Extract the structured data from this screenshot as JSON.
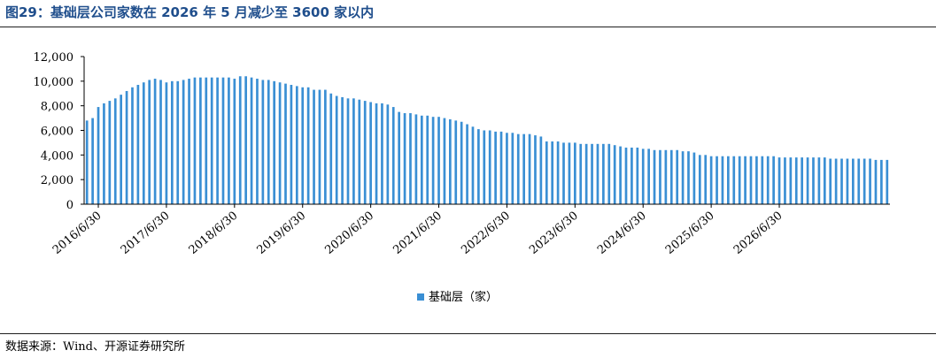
{
  "header": {
    "title": "图29：基础层公司家数在 2026 年 5 月减少至 3600 家以内"
  },
  "footer": {
    "source": "数据来源：Wind、开源证券研究所"
  },
  "colors": {
    "bar": "#3a8fd4",
    "title": "#1f4e8c",
    "axis": "#000000"
  },
  "chart_data": {
    "type": "bar",
    "title": "",
    "xlabel": "",
    "ylabel": "",
    "ylim": [
      0,
      12000
    ],
    "yticks": [
      0,
      2000,
      4000,
      6000,
      8000,
      10000,
      12000
    ],
    "ytick_labels": [
      "0",
      "2,000",
      "4,000",
      "6,000",
      "8,000",
      "10,000",
      "12,000"
    ],
    "x_tick_labels": [
      "2016/6/30",
      "2017/6/30",
      "2018/6/30",
      "2019/6/30",
      "2020/6/30",
      "2021/6/30",
      "2022/6/30",
      "2023/6/30",
      "2024/6/30",
      "2025/6/30",
      "2026/6/30"
    ],
    "grid": false,
    "legend_position": "bottom-center",
    "series": [
      {
        "name": "基础层（家）",
        "values": [
          6800,
          7000,
          7900,
          8200,
          8400,
          8600,
          8900,
          9200,
          9500,
          9700,
          9900,
          10100,
          10200,
          10100,
          9900,
          10000,
          10000,
          10100,
          10200,
          10300,
          10300,
          10300,
          10300,
          10300,
          10300,
          10300,
          10200,
          10400,
          10400,
          10300,
          10200,
          10100,
          10100,
          10000,
          9900,
          9800,
          9700,
          9600,
          9500,
          9500,
          9300,
          9300,
          9300,
          9000,
          8800,
          8700,
          8600,
          8600,
          8500,
          8400,
          8300,
          8200,
          8200,
          8100,
          7900,
          7500,
          7400,
          7400,
          7300,
          7200,
          7200,
          7100,
          7100,
          7000,
          6900,
          6800,
          6700,
          6500,
          6300,
          6100,
          6000,
          6000,
          5900,
          5900,
          5800,
          5800,
          5700,
          5700,
          5700,
          5600,
          5500,
          5100,
          5100,
          5100,
          5000,
          5000,
          5000,
          4900,
          4900,
          4900,
          4900,
          4900,
          4900,
          4800,
          4700,
          4600,
          4600,
          4600,
          4500,
          4500,
          4400,
          4400,
          4400,
          4400,
          4400,
          4300,
          4300,
          4200,
          4000,
          4000,
          3900,
          3900,
          3900,
          3900,
          3900,
          3900,
          3900,
          3900,
          3900,
          3900,
          3900,
          3900,
          3800,
          3800,
          3800,
          3800,
          3800,
          3800,
          3800,
          3800,
          3800,
          3700,
          3700,
          3700,
          3700,
          3700,
          3700,
          3700,
          3700,
          3600,
          3600,
          3600
        ]
      }
    ]
  }
}
